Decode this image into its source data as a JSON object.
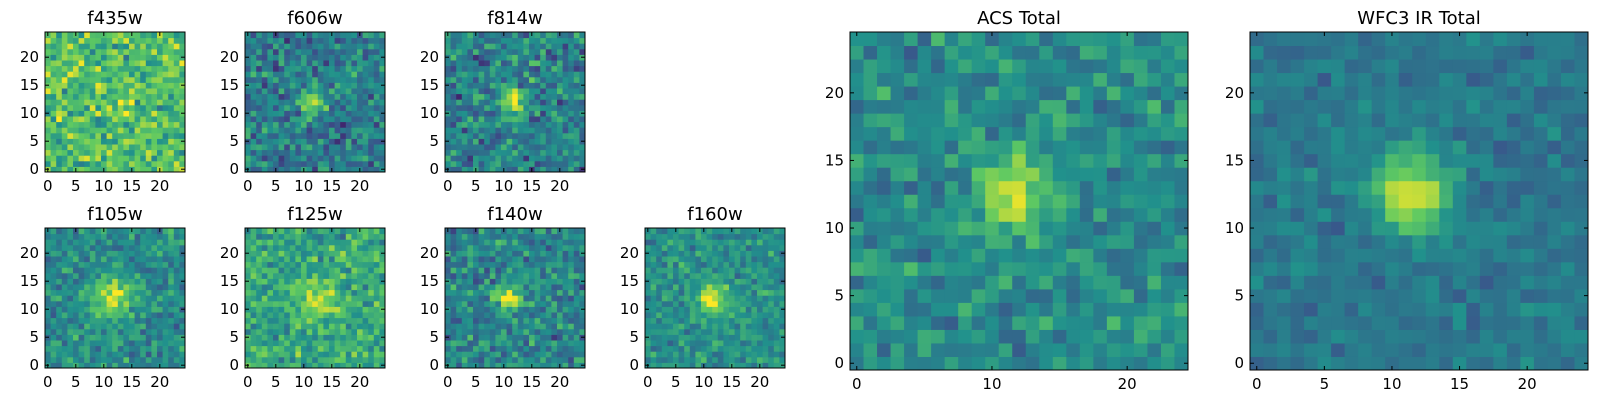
{
  "figure": {
    "colormap": "viridis",
    "colormap_stops": [
      "#440154",
      "#3b528b",
      "#21918c",
      "#5ec962",
      "#fde725"
    ]
  },
  "chart_data": [
    {
      "id": "f435w",
      "type": "heatmap",
      "title": "f435w",
      "grid_size": 25,
      "xlim": [
        -0.5,
        24.5
      ],
      "ylim": [
        -0.5,
        24.5
      ],
      "x_ticks": [
        0,
        5,
        10,
        15,
        20
      ],
      "y_ticks": [
        0,
        5,
        10,
        15,
        20
      ],
      "source": {
        "center": [
          12,
          11
        ],
        "peak": 0.05,
        "width": 2.0,
        "background": 0.7,
        "noise": 0.15
      }
    },
    {
      "id": "f606w",
      "type": "heatmap",
      "title": "f606w",
      "grid_size": 25,
      "xlim": [
        -0.5,
        24.5
      ],
      "ylim": [
        -0.5,
        24.5
      ],
      "x_ticks": [
        0,
        5,
        10,
        15,
        20
      ],
      "y_ticks": [
        0,
        5,
        10,
        15,
        20
      ],
      "source": {
        "center": [
          11.5,
          12
        ],
        "peak": 0.5,
        "width": 1.6,
        "background": 0.42,
        "noise": 0.14
      }
    },
    {
      "id": "f814w",
      "type": "heatmap",
      "title": "f814w",
      "grid_size": 25,
      "xlim": [
        -0.5,
        24.5
      ],
      "ylim": [
        -0.5,
        24.5
      ],
      "x_ticks": [
        0,
        5,
        10,
        15,
        20
      ],
      "y_ticks": [
        0,
        5,
        10,
        15,
        20
      ],
      "source": {
        "center": [
          11.5,
          12
        ],
        "peak": 0.5,
        "width": 1.5,
        "background": 0.45,
        "noise": 0.15
      }
    },
    {
      "id": "f105w",
      "type": "heatmap",
      "title": "f105w",
      "grid_size": 25,
      "xlim": [
        -0.5,
        24.5
      ],
      "ylim": [
        -0.5,
        24.5
      ],
      "x_ticks": [
        0,
        5,
        10,
        15,
        20
      ],
      "y_ticks": [
        0,
        5,
        10,
        15,
        20
      ],
      "source": {
        "center": [
          12,
          12
        ],
        "peak": 0.45,
        "width": 2.6,
        "background": 0.48,
        "noise": 0.12
      }
    },
    {
      "id": "f125w",
      "type": "heatmap",
      "title": "f125w",
      "grid_size": 25,
      "xlim": [
        -0.5,
        24.5
      ],
      "ylim": [
        -0.5,
        24.5
      ],
      "x_ticks": [
        0,
        5,
        10,
        15,
        20
      ],
      "y_ticks": [
        0,
        5,
        10,
        15,
        20
      ],
      "source": {
        "center": [
          12,
          12
        ],
        "peak": 0.3,
        "width": 2.6,
        "background": 0.6,
        "noise": 0.13
      }
    },
    {
      "id": "f140w",
      "type": "heatmap",
      "title": "f140w",
      "grid_size": 25,
      "xlim": [
        -0.5,
        24.5
      ],
      "ylim": [
        -0.5,
        24.5
      ],
      "x_ticks": [
        0,
        5,
        10,
        15,
        20
      ],
      "y_ticks": [
        0,
        5,
        10,
        15,
        20
      ],
      "source": {
        "center": [
          11,
          12
        ],
        "peak": 0.5,
        "width": 1.7,
        "background": 0.45,
        "noise": 0.13
      }
    },
    {
      "id": "f160w",
      "type": "heatmap",
      "title": "f160w",
      "grid_size": 25,
      "xlim": [
        -0.5,
        24.5
      ],
      "ylim": [
        -0.5,
        24.5
      ],
      "x_ticks": [
        0,
        5,
        10,
        15,
        20
      ],
      "y_ticks": [
        0,
        5,
        10,
        15,
        20
      ],
      "source": {
        "center": [
          11.5,
          12
        ],
        "peak": 0.5,
        "width": 1.9,
        "background": 0.5,
        "noise": 0.1
      }
    },
    {
      "id": "acs_total",
      "type": "heatmap",
      "title": "ACS Total",
      "grid_size": 25,
      "xlim": [
        -0.5,
        24.5
      ],
      "ylim": [
        -0.5,
        24.5
      ],
      "x_ticks": [
        0,
        10,
        20
      ],
      "y_ticks": [
        0,
        5,
        10,
        15,
        20
      ],
      "source": {
        "center": [
          11.5,
          12.5
        ],
        "peak": 0.5,
        "width": 1.8,
        "background": 0.48,
        "noise": 0.1
      }
    },
    {
      "id": "wfc3_ir_total",
      "type": "heatmap",
      "title": "WFC3 IR Total",
      "grid_size": 25,
      "xlim": [
        -0.5,
        24.5
      ],
      "ylim": [
        -0.5,
        24.5
      ],
      "x_ticks": [
        0,
        5,
        10,
        15,
        20
      ],
      "y_ticks": [
        0,
        5,
        10,
        15,
        20
      ],
      "source": {
        "center": [
          11.5,
          12.5
        ],
        "peak": 0.55,
        "width": 2.0,
        "background": 0.4,
        "noise": 0.06
      }
    }
  ]
}
